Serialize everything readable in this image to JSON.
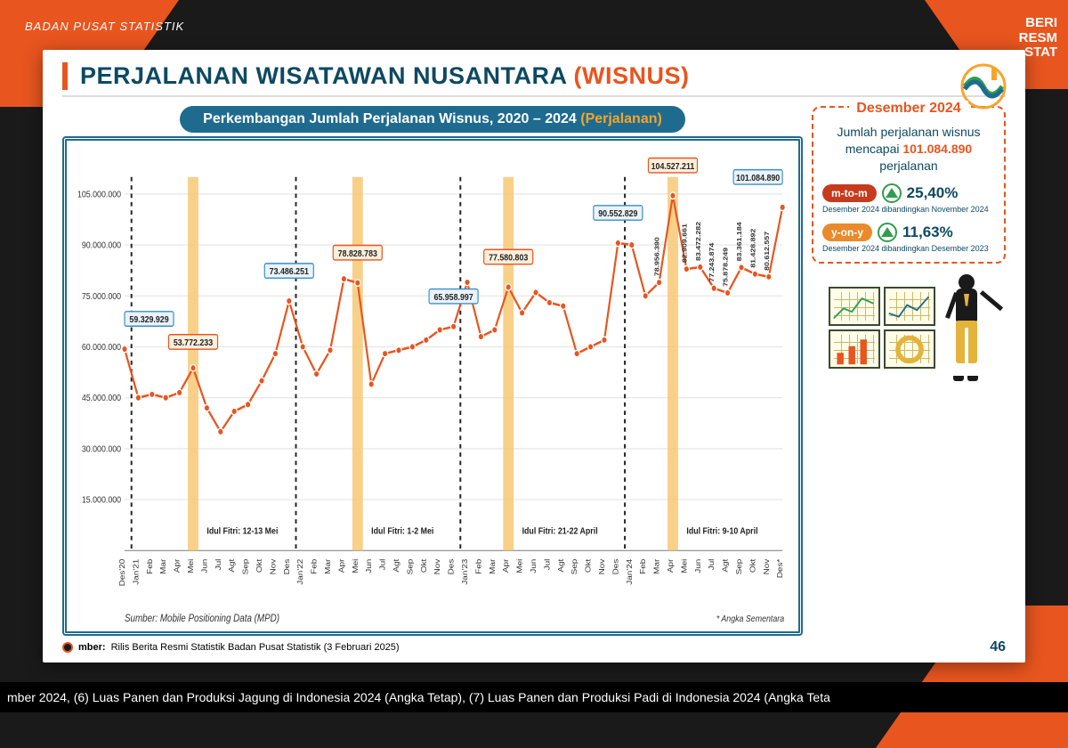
{
  "stream": {
    "org": "BADAN PUSAT STATISTIK",
    "badge_line1": "BERI",
    "badge_line2": "RESM",
    "badge_line3": "STAT"
  },
  "slide_title": {
    "main": "PERJALANAN WISATAWAN NUSANTARA ",
    "accent": "(WISNUS)"
  },
  "sub_banner": {
    "main": "Perkembangan Jumlah Perjalanan Wisnus, 2020 – 2024   ",
    "accent": "(Perjalanan)"
  },
  "chart": {
    "type": "line",
    "line_color": "#e8551f",
    "marker_fill": "#e8551f",
    "highlight_bar_color": "#f7c873",
    "grid_color": "#e5e5e5",
    "callout_blue_fill": "#eaf3fa",
    "callout_blue_stroke": "#3a8fc5",
    "callout_orange_fill": "#fdefdc",
    "callout_orange_stroke": "#e8551f",
    "ylim": [
      0,
      110000000
    ],
    "y_ticks": [
      15000000,
      30000000,
      45000000,
      60000000,
      75000000,
      90000000,
      105000000
    ],
    "y_tick_labels": [
      "15.000.000",
      "30.000.000",
      "45.000.000",
      "60.000.000",
      "75.000.000",
      "90.000.000",
      "105.000.000"
    ],
    "x_labels": [
      "Des'20",
      "Jan'21",
      "Feb",
      "Mar",
      "Apr",
      "Mei",
      "Jun",
      "Jul",
      "Agt",
      "Sep",
      "Okt",
      "Nov",
      "Des",
      "Jan'22",
      "Feb",
      "Mar",
      "Apr",
      "Mei",
      "Jun",
      "Jul",
      "Agt",
      "Sep",
      "Okt",
      "Nov",
      "Des",
      "Jan'23",
      "Feb",
      "Mar",
      "Apr",
      "Mei",
      "Jun",
      "Jul",
      "Agt",
      "Sep",
      "Okt",
      "Nov",
      "Des",
      "Jan'24",
      "Feb",
      "Mar",
      "Apr",
      "Mei",
      "Jun",
      "Jul",
      "Agt",
      "Sep",
      "Okt",
      "Nov",
      "Des*"
    ],
    "values": [
      59329929,
      45000000,
      46000000,
      45000000,
      46500000,
      53772233,
      42000000,
      35000000,
      41000000,
      43000000,
      50000000,
      58000000,
      73486251,
      60000000,
      52000000,
      59000000,
      80000000,
      78828783,
      49000000,
      58000000,
      59000000,
      60000000,
      62000000,
      65000000,
      65958997,
      79000000,
      63000000,
      65000000,
      77580803,
      70000000,
      76000000,
      73000000,
      72000000,
      58000000,
      60000000,
      62000000,
      90552829,
      90000000,
      75000000,
      78956390,
      104527211,
      82909661,
      83472282,
      77243874,
      75878249,
      83361184,
      81428892,
      80612557,
      101084890
    ],
    "highlight_indices": [
      5,
      17,
      28,
      40
    ],
    "year_separators": [
      1,
      13,
      25,
      37
    ],
    "idul_labels": [
      {
        "text": "Idul Fitri: 12-13 Mei",
        "x_index": 6
      },
      {
        "text": "Idul Fitri: 1-2 Mei",
        "x_index": 18
      },
      {
        "text": "Idul Fitri: 21-22 April",
        "x_index": 29
      },
      {
        "text": "Idul Fitri: 9-10 April",
        "x_index": 41
      }
    ],
    "callouts": [
      {
        "idx": 0,
        "label": "59.329.929",
        "color": "blue",
        "y_off": -22
      },
      {
        "idx": 5,
        "label": "53.772.233",
        "color": "orange",
        "y_off": -18
      },
      {
        "idx": 12,
        "label": "73.486.251",
        "color": "blue",
        "y_off": -22
      },
      {
        "idx": 17,
        "label": "78.828.783",
        "color": "orange",
        "y_off": -22
      },
      {
        "idx": 24,
        "label": "65.958.997",
        "color": "blue",
        "y_off": -22
      },
      {
        "idx": 28,
        "label": "77.580.803",
        "color": "orange",
        "y_off": -22
      },
      {
        "idx": 36,
        "label": "90.552.829",
        "color": "blue",
        "y_off": -22
      },
      {
        "idx": 40,
        "label": "104.527.211",
        "color": "orange",
        "y_off": -22
      },
      {
        "idx": 48,
        "label": "101.084.890",
        "color": "blue",
        "y_off": -22
      }
    ],
    "rotated_value_labels": [
      {
        "idx": 39,
        "text": "78.956.390"
      },
      {
        "idx": 41,
        "text": "82.909.661"
      },
      {
        "idx": 42,
        "text": "83.472.282"
      },
      {
        "idx": 43,
        "text": "77.243.874"
      },
      {
        "idx": 44,
        "text": "75.878.249"
      },
      {
        "idx": 45,
        "text": "83.361.184"
      },
      {
        "idx": 46,
        "text": "81.428.892"
      },
      {
        "idx": 47,
        "text": "80.612.557"
      }
    ],
    "source_in_chart": "Sumber: Mobile Positioning Data (MPD)",
    "footnote_right": "* Angka Sementara"
  },
  "side": {
    "heading": "Desember 2024",
    "body_pre": "Jumlah perjalanan wisnus mencapai ",
    "body_big": "101.084.890",
    "body_post": " perjalanan",
    "mtom_label": "m-to-m",
    "mtom_val": "25,40%",
    "mtom_sub": "Desember 2024 dibandingkan November 2024",
    "yony_label": "y-on-y",
    "yony_val": "11,63%",
    "yony_sub": "Desember 2024 dibandingkan Desember 2023"
  },
  "footer": {
    "sumber_label": "mber:",
    "sumber_text": "Rilis Berita Resmi Statistik Badan Pusat Statistik (3 Februari 2025)",
    "page": "46"
  },
  "ticker": "mber 2024, (6) Luas Panen dan Produksi Jagung di Indonesia 2024 (Angka Tetap), (7) Luas Panen dan Produksi Padi di Indonesia 2024 (Angka Teta",
  "colors": {
    "brand_orange": "#e8551f",
    "brand_navy": "#0d4962",
    "banner_blue": "#1e6b8f"
  }
}
